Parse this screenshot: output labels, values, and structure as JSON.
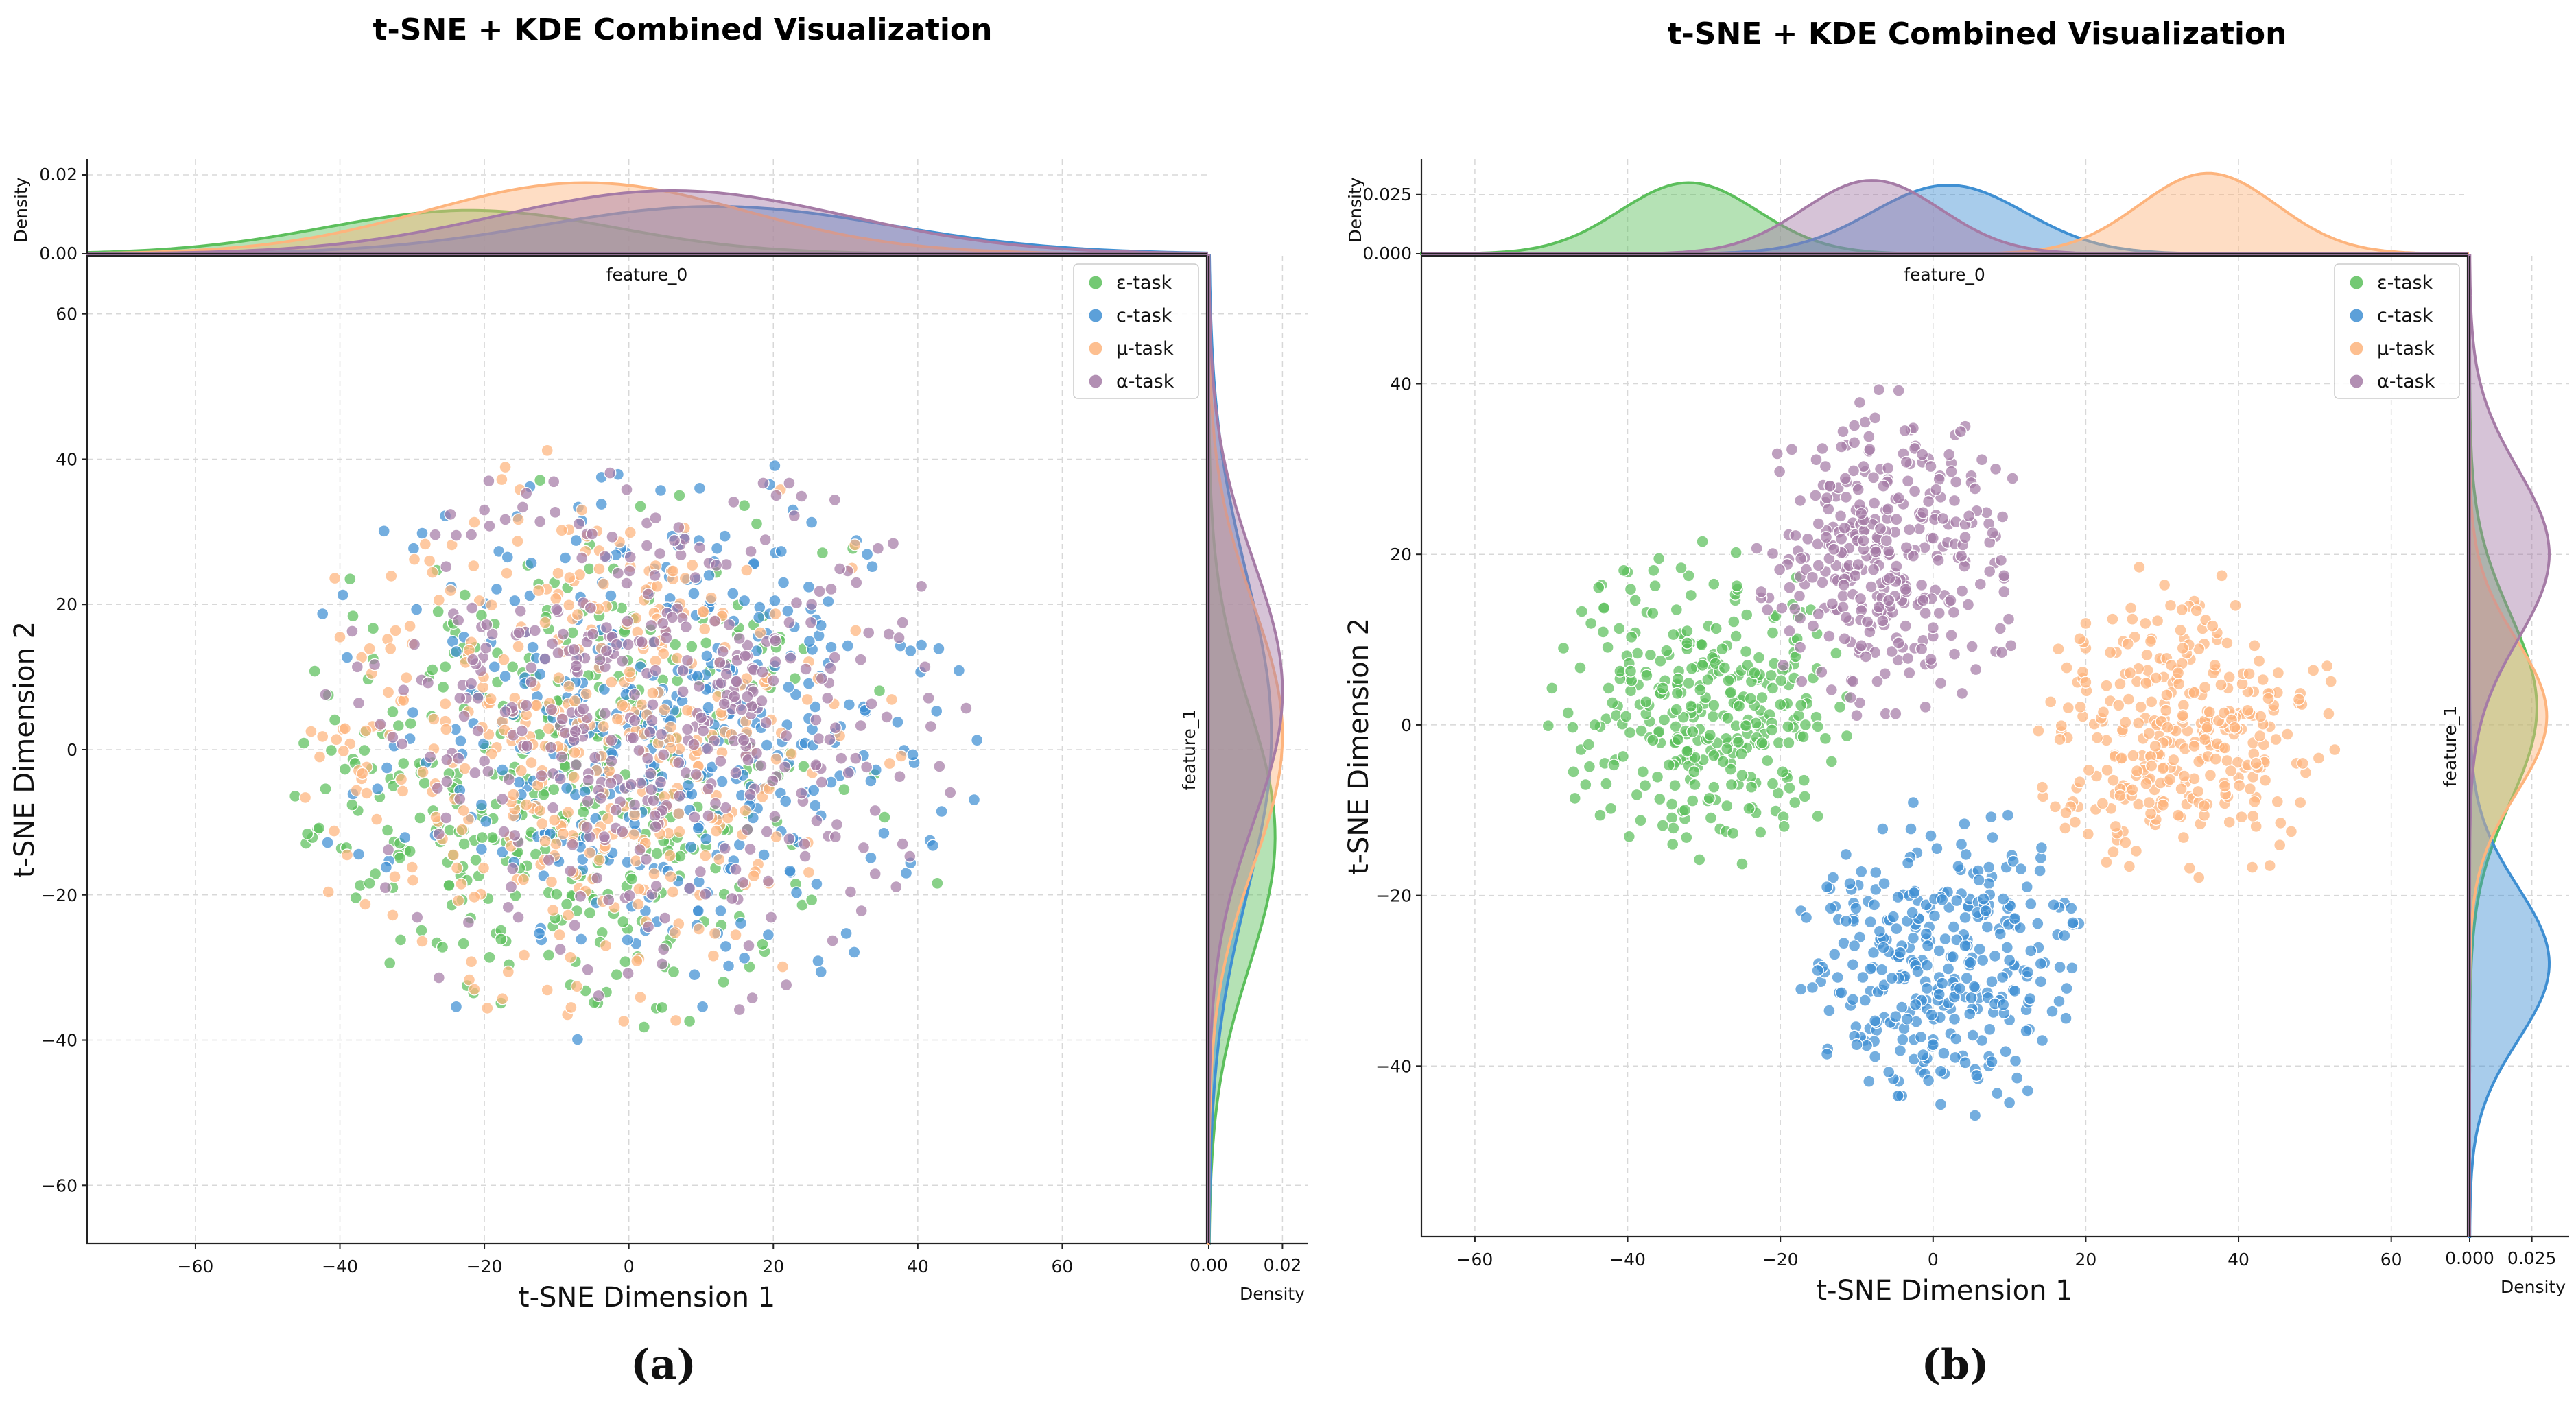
{
  "colors": {
    "epsilon": "#5cbf5c",
    "c": "#3f8fd2",
    "mu": "#fdb47d",
    "alpha": "#a57ba6"
  },
  "chart_data": [
    {
      "panel": "(a)",
      "type": "scatter",
      "title": "t-SNE + KDE Combined Visualization",
      "xlabel": "t-SNE Dimension 1",
      "ylabel": "t-SNE Dimension 2",
      "xlim": [
        -75,
        80
      ],
      "ylim": [
        -68,
        68
      ],
      "xticks": [
        -60,
        -40,
        -20,
        0,
        20,
        40,
        60
      ],
      "yticks": [
        -60,
        -40,
        -20,
        0,
        20,
        40,
        60
      ],
      "grid": true,
      "legend_position": "top-right",
      "top_marginal": {
        "ylabel": "Density",
        "xlabel": "feature_0",
        "yticks": [
          "0.00",
          "0.02"
        ],
        "ymax": 0.024
      },
      "right_marginal": {
        "xlabel": "Density",
        "ylabel": "feature_1",
        "xticks": [
          "0.00",
          "0.02"
        ],
        "xmax": 0.027
      },
      "series": [
        {
          "name": "ε-task",
          "key": "epsilon",
          "points": []
        },
        {
          "name": "c-task",
          "key": "c",
          "points": []
        },
        {
          "name": "μ-task",
          "key": "mu",
          "points": []
        },
        {
          "name": "α-task",
          "key": "alpha",
          "points": []
        }
      ],
      "kde_x": [
        {
          "key": "epsilon",
          "mean": -22,
          "sd": 20,
          "peak": 0.011
        },
        {
          "key": "c",
          "mean": 12,
          "sd": 24,
          "peak": 0.012
        },
        {
          "key": "mu",
          "mean": -6,
          "sd": 22,
          "peak": 0.018
        },
        {
          "key": "alpha",
          "mean": 6,
          "sd": 24,
          "peak": 0.016
        }
      ],
      "kde_y": [
        {
          "key": "epsilon",
          "mean": -12,
          "sd": 18,
          "peak": 0.018
        },
        {
          "key": "c",
          "mean": 2,
          "sd": 22,
          "peak": 0.017
        },
        {
          "key": "mu",
          "mean": 2,
          "sd": 18,
          "peak": 0.02
        },
        {
          "key": "alpha",
          "mean": 8,
          "sd": 18,
          "peak": 0.02
        }
      ]
    },
    {
      "panel": "(b)",
      "type": "scatter",
      "title": "t-SNE + KDE Combined Visualization",
      "xlabel": "t-SNE Dimension 1",
      "ylabel": "t-SNE Dimension 2",
      "xlim": [
        -67,
        70
      ],
      "ylim": [
        -60,
        55
      ],
      "xticks": [
        -60,
        -40,
        -20,
        0,
        20,
        40,
        60
      ],
      "yticks": [
        -40,
        -20,
        0,
        20,
        40
      ],
      "grid": true,
      "legend_position": "top-right",
      "top_marginal": {
        "ylabel": "Density",
        "xlabel": "feature_0",
        "yticks": [
          "0.000",
          "0.025"
        ],
        "ymax": 0.04
      },
      "right_marginal": {
        "xlabel": "Density",
        "ylabel": "feature_1",
        "xticks": [
          "0.000",
          "0.025"
        ],
        "xmax": 0.04
      },
      "series": [
        {
          "name": "ε-task",
          "key": "epsilon",
          "points": []
        },
        {
          "name": "c-task",
          "key": "c",
          "points": []
        },
        {
          "name": "μ-task",
          "key": "mu",
          "points": []
        },
        {
          "name": "α-task",
          "key": "alpha",
          "points": []
        }
      ],
      "kde_x": [
        {
          "key": "epsilon",
          "mean": -32,
          "sd": 9,
          "peak": 0.03
        },
        {
          "key": "c",
          "mean": 2,
          "sd": 10,
          "peak": 0.029
        },
        {
          "key": "mu",
          "mean": 36,
          "sd": 9,
          "peak": 0.034
        },
        {
          "key": "alpha",
          "mean": -8,
          "sd": 9,
          "peak": 0.031
        }
      ],
      "kde_y": [
        {
          "key": "epsilon",
          "mean": 2,
          "sd": 11,
          "peak": 0.027
        },
        {
          "key": "c",
          "mean": -28,
          "sd": 9,
          "peak": 0.032
        },
        {
          "key": "mu",
          "mean": 1,
          "sd": 9,
          "peak": 0.031
        },
        {
          "key": "alpha",
          "mean": 20,
          "sd": 10,
          "peak": 0.032
        }
      ]
    }
  ]
}
